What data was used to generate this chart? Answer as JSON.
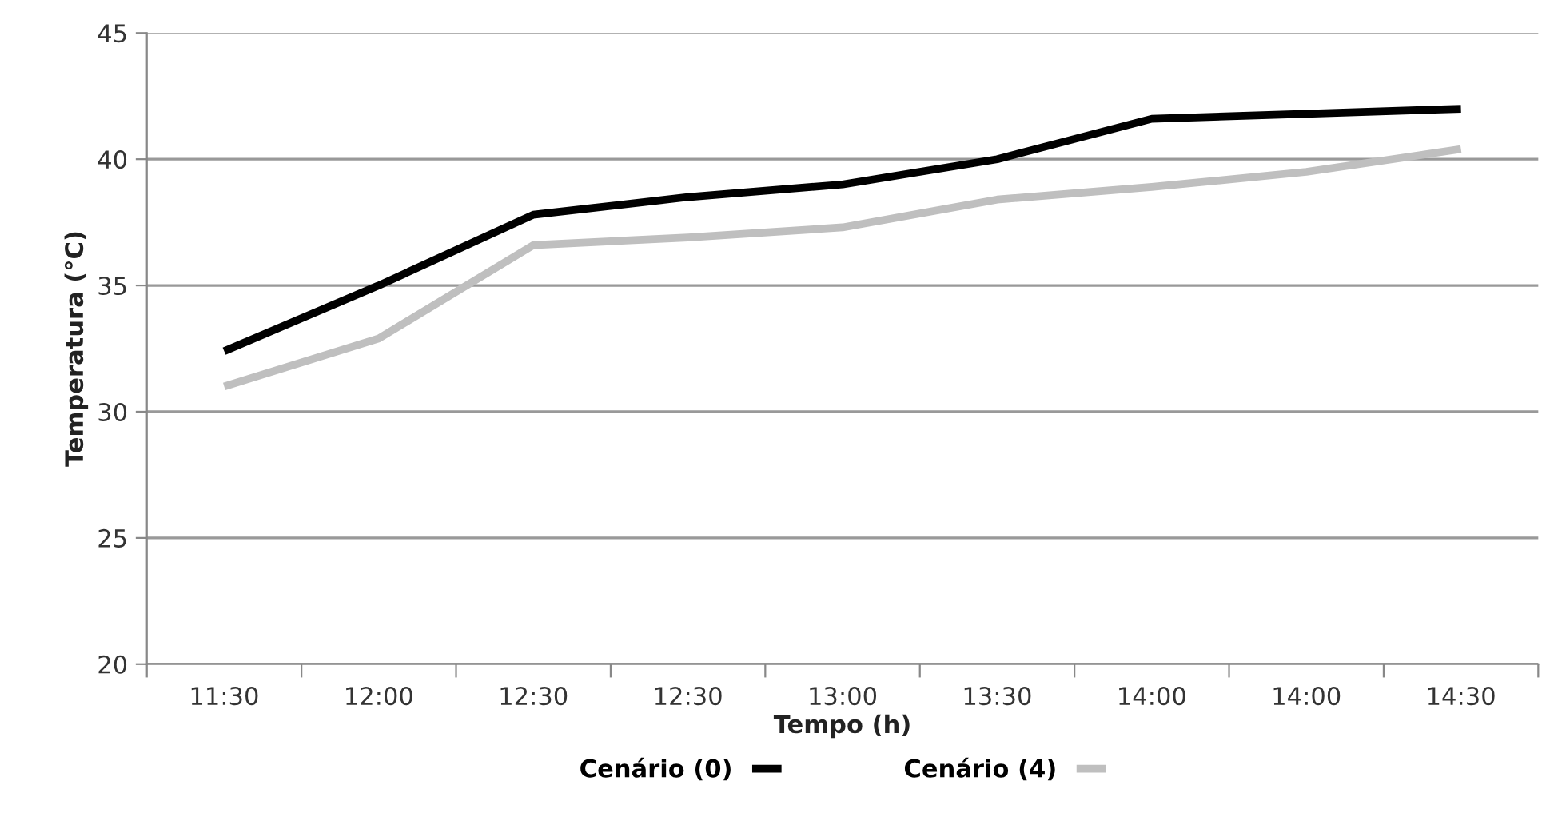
{
  "chart_data": {
    "type": "line",
    "xlabel": "Tempo (h)",
    "ylabel": "Temperatura (°C)",
    "categories": [
      "11:30",
      "12:00",
      "12:30",
      "12:30",
      "13:00",
      "13:30",
      "14:00",
      "14:00",
      "14:30"
    ],
    "series": [
      {
        "name": "Cenário (0)",
        "color": "#000000",
        "values": [
          32.4,
          35.0,
          37.8,
          38.5,
          39.0,
          40.0,
          41.6,
          41.8,
          42.0
        ]
      },
      {
        "name": "Cenário (4)",
        "color": "#bfbfbf",
        "values": [
          31.0,
          32.9,
          36.6,
          36.9,
          37.3,
          38.4,
          38.9,
          39.5,
          40.4
        ]
      }
    ],
    "ylim": [
      20,
      45
    ],
    "yticks": [
      20,
      25,
      30,
      35,
      40,
      45
    ],
    "grid": "y",
    "legend": "bottom",
    "marker": "none",
    "line_style": "solid"
  }
}
